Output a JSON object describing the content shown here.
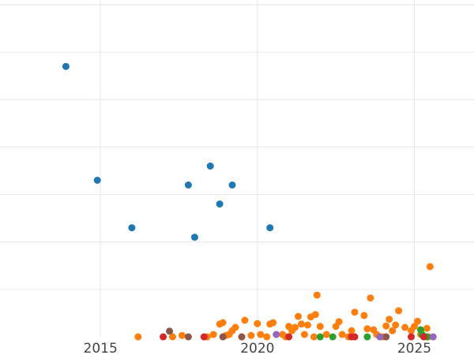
{
  "chart_data": {
    "type": "scatter",
    "title": "",
    "xlabel": "",
    "ylabel": "",
    "grid": true,
    "legend": "none",
    "xlim": [
      2011.8,
      2026.9
    ],
    "ylim": [
      0,
      7.1
    ],
    "x_ticks": [
      {
        "value": 2015,
        "label": "2015"
      },
      {
        "value": 2020,
        "label": "2020"
      },
      {
        "value": 2025,
        "label": "2025"
      }
    ],
    "y_gridlines": [
      1,
      2,
      3,
      4,
      5,
      6,
      7
    ],
    "series": [
      {
        "color": "#1f77b4",
        "points": [
          {
            "x": 2013.9,
            "y": 5.7
          },
          {
            "x": 2014.9,
            "y": 3.3
          },
          {
            "x": 2016.0,
            "y": 2.3
          },
          {
            "x": 2017.8,
            "y": 3.2
          },
          {
            "x": 2018.0,
            "y": 2.1
          },
          {
            "x": 2018.5,
            "y": 3.6
          },
          {
            "x": 2018.8,
            "y": 2.8
          },
          {
            "x": 2019.2,
            "y": 3.2
          },
          {
            "x": 2020.4,
            "y": 2.3
          }
        ]
      },
      {
        "color": "#ff7f0e",
        "points": [
          {
            "x": 2016.2,
            "y": 0.0
          },
          {
            "x": 2017.3,
            "y": 0.0
          },
          {
            "x": 2017.6,
            "y": 0.03
          },
          {
            "x": 2018.4,
            "y": 0.0
          },
          {
            "x": 2018.6,
            "y": 0.05
          },
          {
            "x": 2018.8,
            "y": 0.27
          },
          {
            "x": 2018.9,
            "y": 0.3
          },
          {
            "x": 2019.0,
            "y": 0.03
          },
          {
            "x": 2019.1,
            "y": 0.05
          },
          {
            "x": 2019.2,
            "y": 0.13
          },
          {
            "x": 2019.3,
            "y": 0.2
          },
          {
            "x": 2019.5,
            "y": 0.0
          },
          {
            "x": 2019.6,
            "y": 0.35
          },
          {
            "x": 2019.8,
            "y": 0.03
          },
          {
            "x": 2020.0,
            "y": 0.28
          },
          {
            "x": 2020.1,
            "y": 0.05
          },
          {
            "x": 2020.3,
            "y": 0.0
          },
          {
            "x": 2020.4,
            "y": 0.27
          },
          {
            "x": 2020.5,
            "y": 0.3
          },
          {
            "x": 2020.8,
            "y": 0.05
          },
          {
            "x": 2020.9,
            "y": 0.0
          },
          {
            "x": 2021.0,
            "y": 0.22
          },
          {
            "x": 2021.1,
            "y": 0.13
          },
          {
            "x": 2021.2,
            "y": 0.2
          },
          {
            "x": 2021.3,
            "y": 0.43
          },
          {
            "x": 2021.4,
            "y": 0.27
          },
          {
            "x": 2021.5,
            "y": 0.05
          },
          {
            "x": 2021.6,
            "y": 0.25
          },
          {
            "x": 2021.7,
            "y": 0.42
          },
          {
            "x": 2021.8,
            "y": 0.0
          },
          {
            "x": 2021.85,
            "y": 0.47
          },
          {
            "x": 2021.9,
            "y": 0.88
          },
          {
            "x": 2022.0,
            "y": 0.22
          },
          {
            "x": 2022.2,
            "y": 0.05
          },
          {
            "x": 2022.5,
            "y": 0.22
          },
          {
            "x": 2022.6,
            "y": 0.32
          },
          {
            "x": 2022.7,
            "y": 0.05
          },
          {
            "x": 2022.9,
            "y": 0.0
          },
          {
            "x": 2023.0,
            "y": 0.13
          },
          {
            "x": 2023.1,
            "y": 0.52
          },
          {
            "x": 2023.4,
            "y": 0.45
          },
          {
            "x": 2023.5,
            "y": 0.17
          },
          {
            "x": 2023.6,
            "y": 0.82
          },
          {
            "x": 2023.7,
            "y": 0.15
          },
          {
            "x": 2023.8,
            "y": 0.05
          },
          {
            "x": 2024.0,
            "y": 0.0
          },
          {
            "x": 2024.1,
            "y": 0.23
          },
          {
            "x": 2024.2,
            "y": 0.37
          },
          {
            "x": 2024.3,
            "y": 0.13
          },
          {
            "x": 2024.4,
            "y": 0.25
          },
          {
            "x": 2024.5,
            "y": 0.55
          },
          {
            "x": 2024.7,
            "y": 0.2
          },
          {
            "x": 2024.9,
            "y": 0.13
          },
          {
            "x": 2025.0,
            "y": 0.22
          },
          {
            "x": 2025.1,
            "y": 0.33
          },
          {
            "x": 2025.2,
            "y": 0.05
          },
          {
            "x": 2025.4,
            "y": 0.18
          },
          {
            "x": 2025.45,
            "y": 0.0
          },
          {
            "x": 2025.5,
            "y": 1.48
          }
        ]
      },
      {
        "color": "#2ca02c",
        "points": [
          {
            "x": 2022.0,
            "y": 0.0
          },
          {
            "x": 2022.4,
            "y": 0.0
          },
          {
            "x": 2023.5,
            "y": 0.0
          },
          {
            "x": 2025.2,
            "y": 0.15
          },
          {
            "x": 2025.25,
            "y": 0.05
          },
          {
            "x": 2025.4,
            "y": 0.0
          }
        ]
      },
      {
        "color": "#d62728",
        "points": [
          {
            "x": 2017.0,
            "y": 0.0
          },
          {
            "x": 2018.3,
            "y": 0.0
          },
          {
            "x": 2021.0,
            "y": 0.0
          },
          {
            "x": 2023.0,
            "y": 0.0
          },
          {
            "x": 2023.1,
            "y": 0.0
          },
          {
            "x": 2024.9,
            "y": 0.0
          },
          {
            "x": 2025.3,
            "y": 0.0
          }
        ]
      },
      {
        "color": "#8c564b",
        "points": [
          {
            "x": 2017.2,
            "y": 0.12
          },
          {
            "x": 2017.8,
            "y": 0.0
          },
          {
            "x": 2018.9,
            "y": 0.0
          },
          {
            "x": 2019.5,
            "y": 0.0
          },
          {
            "x": 2024.1,
            "y": 0.0
          }
        ]
      },
      {
        "color": "#9467bd",
        "points": [
          {
            "x": 2020.6,
            "y": 0.05
          },
          {
            "x": 2023.9,
            "y": 0.0
          },
          {
            "x": 2025.6,
            "y": 0.0
          }
        ]
      }
    ]
  }
}
